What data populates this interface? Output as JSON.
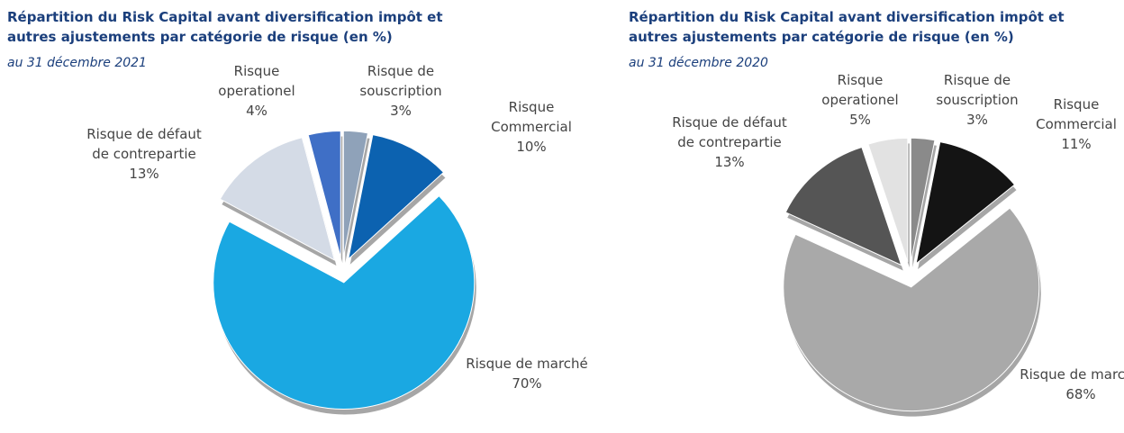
{
  "chart_data": [
    {
      "type": "pie",
      "title": "Répartition du Risk Capital avant diversification impôt et autres ajustements par catégorie de risque (en %)",
      "subtitle": "au 31 décembre 2021",
      "categories": [
        "Risque de souscription",
        "Risque Commercial",
        "Risque de marché",
        "Risque de défaut de contrepartie",
        "Risque operationel"
      ],
      "values": [
        3,
        10,
        70,
        13,
        4
      ],
      "value_labels": [
        "3%",
        "10%",
        "70%",
        "13%",
        "4%"
      ],
      "colors": [
        "#8fa2b9",
        "#0c62b0",
        "#1aa8e2",
        "#d4dbe6",
        "#3f6fc6"
      ]
    },
    {
      "type": "pie",
      "title": "Répartition du Risk Capital avant diversification impôt et autres ajustements par catégorie de risque (en %)",
      "subtitle": "au 31 décembre 2020",
      "categories": [
        "Risque de souscription",
        "Risque Commercial",
        "Risque de marché",
        "Risque de défaut de contrepartie",
        "Risque operationel"
      ],
      "values": [
        3,
        11,
        68,
        13,
        5
      ],
      "value_labels": [
        "3%",
        "11%",
        "68%",
        "13%",
        "5%"
      ],
      "colors": [
        "#8a8a8a",
        "#141414",
        "#a9a9a9",
        "#555555",
        "#e2e2e2"
      ]
    }
  ]
}
